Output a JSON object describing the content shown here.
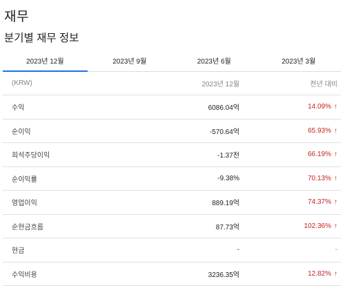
{
  "page": {
    "title": "재무",
    "subtitle": "분기별 재무 정보"
  },
  "tabs": [
    {
      "label": "2023년 12월",
      "active": true
    },
    {
      "label": "2023년 9월",
      "active": false
    },
    {
      "label": "2023년 6월",
      "active": false
    },
    {
      "label": "2023년 3월",
      "active": false
    }
  ],
  "table": {
    "header": {
      "label": "(KRW)",
      "value": "2023년 12월",
      "change": "전년 대비"
    },
    "rows": [
      {
        "label": "수익",
        "value": "6086.04억",
        "change": "14.09%",
        "direction": "up"
      },
      {
        "label": "순이익",
        "value": "-570.64억",
        "change": "65.93%",
        "direction": "up"
      },
      {
        "label": "희석주당이익",
        "value": "-1.37천",
        "change": "66.19%",
        "direction": "up"
      },
      {
        "label": "순이익률",
        "value": "-9.38%",
        "change": "70.13%",
        "direction": "up"
      },
      {
        "label": "영업이익",
        "value": "889.19억",
        "change": "74.37%",
        "direction": "up"
      },
      {
        "label": "순현금흐름",
        "value": "87.73억",
        "change": "102.36%",
        "direction": "up"
      },
      {
        "label": "현금",
        "value": "-",
        "change": "-",
        "direction": "none"
      },
      {
        "label": "수익비용",
        "value": "3236.35억",
        "change": "12.82%",
        "direction": "up"
      }
    ]
  },
  "colors": {
    "accent": "#1a73e8",
    "negative": "#c5221f",
    "muted": "#80868b"
  }
}
